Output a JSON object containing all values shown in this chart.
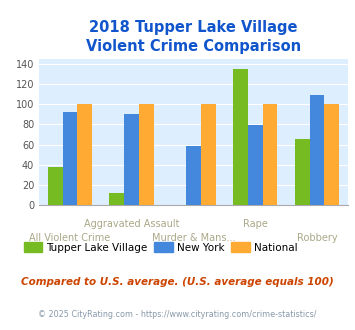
{
  "title": "2018 Tupper Lake Village\nViolent Crime Comparison",
  "categories": [
    "All Violent Crime",
    "Aggravated Assault",
    "Murder & Mans...",
    "Rape",
    "Robbery"
  ],
  "top_labels": [
    "",
    "Aggravated Assault",
    "",
    "Rape",
    ""
  ],
  "bottom_labels": [
    "All Violent Crime",
    "",
    "Murder & Mans...",
    "",
    "Robbery"
  ],
  "tupper_lake": [
    38,
    12,
    0,
    135,
    66
  ],
  "new_york": [
    92,
    90,
    59,
    79,
    109
  ],
  "national": [
    100,
    100,
    100,
    100,
    100
  ],
  "colors": {
    "tupper_lake": "#77bb22",
    "new_york": "#4488dd",
    "national": "#ffaa33"
  },
  "ylim": [
    0,
    145
  ],
  "yticks": [
    0,
    20,
    40,
    60,
    80,
    100,
    120,
    140
  ],
  "plot_bg": "#ddeeff",
  "title_color": "#1155cc",
  "legend_labels": [
    "Tupper Lake Village",
    "New York",
    "National"
  ],
  "footnote1": "Compared to U.S. average. (U.S. average equals 100)",
  "footnote2": "© 2025 CityRating.com - https://www.cityrating.com/crime-statistics/",
  "footnote1_color": "#cc4400",
  "footnote2_color": "#8899aa",
  "xlabel_color": "#aaa888"
}
